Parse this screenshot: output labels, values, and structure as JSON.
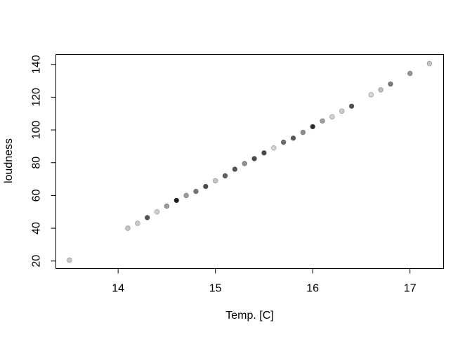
{
  "figure": {
    "background": "#ffffff",
    "axis_color": "#000000",
    "text_color": "#000000"
  },
  "chart_data": {
    "type": "scatter",
    "title": "",
    "xlabel": "Temp. [C]",
    "ylabel": "loudness",
    "x_ticks": [
      14,
      15,
      16,
      17
    ],
    "y_ticks": [
      20,
      40,
      60,
      80,
      100,
      120,
      140
    ],
    "xlim": [
      13.36,
      17.345
    ],
    "ylim": [
      15.4,
      146.1
    ],
    "grid": false,
    "legend": false,
    "marker": "filled-circle",
    "marker_radius": 3.4,
    "points": [
      {
        "x": 13.5,
        "y": 20.5,
        "color": "#c9c9c9"
      },
      {
        "x": 14.1,
        "y": 40.0,
        "color": "#c6c6c6"
      },
      {
        "x": 14.2,
        "y": 43.0,
        "color": "#cbcbcb"
      },
      {
        "x": 14.3,
        "y": 46.5,
        "color": "#525252"
      },
      {
        "x": 14.4,
        "y": 50.0,
        "color": "#cecece"
      },
      {
        "x": 14.5,
        "y": 53.5,
        "color": "#979797"
      },
      {
        "x": 14.6,
        "y": 57.0,
        "color": "#1f1f1f"
      },
      {
        "x": 14.7,
        "y": 60.0,
        "color": "#9b9b9b"
      },
      {
        "x": 14.8,
        "y": 62.5,
        "color": "#757575"
      },
      {
        "x": 14.9,
        "y": 65.5,
        "color": "#4d4d4d"
      },
      {
        "x": 15.0,
        "y": 69.0,
        "color": "#c4c4c4"
      },
      {
        "x": 15.1,
        "y": 72.0,
        "color": "#5c5c5c"
      },
      {
        "x": 15.2,
        "y": 76.0,
        "color": "#565656"
      },
      {
        "x": 15.3,
        "y": 79.5,
        "color": "#909090"
      },
      {
        "x": 15.4,
        "y": 82.5,
        "color": "#4a4a4a"
      },
      {
        "x": 15.5,
        "y": 86.0,
        "color": "#474747"
      },
      {
        "x": 15.6,
        "y": 89.0,
        "color": "#d6d6d6"
      },
      {
        "x": 15.7,
        "y": 92.5,
        "color": "#6a6a6a"
      },
      {
        "x": 15.8,
        "y": 95.0,
        "color": "#585858"
      },
      {
        "x": 15.9,
        "y": 98.5,
        "color": "#8b8b8b"
      },
      {
        "x": 16.0,
        "y": 102.0,
        "color": "#2d2d2d"
      },
      {
        "x": 16.1,
        "y": 105.5,
        "color": "#9c9c9c"
      },
      {
        "x": 16.2,
        "y": 108.0,
        "color": "#d1d1d1"
      },
      {
        "x": 16.3,
        "y": 111.5,
        "color": "#cacaca"
      },
      {
        "x": 16.4,
        "y": 114.5,
        "color": "#515151"
      },
      {
        "x": 16.6,
        "y": 121.5,
        "color": "#d4d4d4"
      },
      {
        "x": 16.7,
        "y": 124.5,
        "color": "#c0c0c0"
      },
      {
        "x": 16.8,
        "y": 128.0,
        "color": "#7b7b7b"
      },
      {
        "x": 17.0,
        "y": 134.5,
        "color": "#949494"
      },
      {
        "x": 17.2,
        "y": 140.5,
        "color": "#c8c8c8"
      }
    ]
  }
}
